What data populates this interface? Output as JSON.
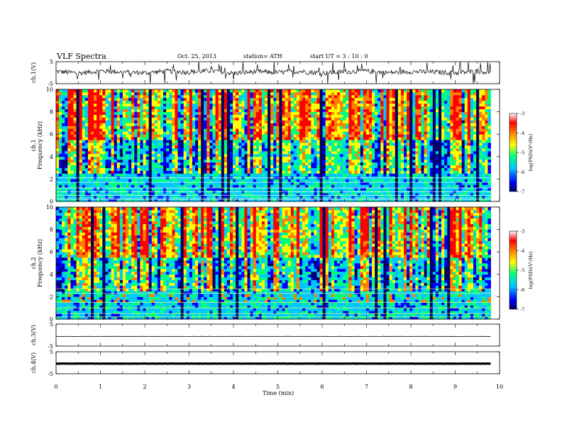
{
  "header": {
    "title": "VLF  Spectra",
    "date": "Oct. 25, 2013",
    "station": "station= ATH",
    "start_ut": "start  UT  =   3  : 10 : 0"
  },
  "chart_data": [
    {
      "type": "line",
      "panel": "ch1-waveform",
      "ylabel": "ch.1(V)",
      "ylim": [
        -5,
        5
      ],
      "yticks": [
        "5",
        "-5"
      ],
      "x": [
        0,
        0.5,
        1,
        1.5,
        2,
        2.5,
        3,
        3.5,
        4,
        4.5,
        5,
        5.5,
        6,
        6.5,
        7,
        7.5,
        8,
        8.5,
        9,
        9.5,
        9.8
      ],
      "y": [
        0.6,
        -0.2,
        0.8,
        0.3,
        -0.1,
        0.7,
        0.2,
        0.9,
        -0.3,
        0.5,
        0.1,
        0.6,
        -0.2,
        0.4,
        0.7,
        0.0,
        0.5,
        0.3,
        -0.1,
        0.6,
        0.2
      ],
      "xlim": [
        0,
        10
      ]
    },
    {
      "type": "heatmap",
      "panel": "ch1-spectrogram",
      "ylabel": "ch.1\nFrequency (kHz)",
      "ylim": [
        0,
        10
      ],
      "yticks": [
        "0",
        "2",
        "4",
        "6",
        "8",
        "10"
      ],
      "xlim": [
        0,
        10
      ],
      "data_xmax": 9.8,
      "colorbar": {
        "label": "log(PSD)(V²/Hz)",
        "range": [
          -7,
          -3
        ],
        "ticks": [
          "-3",
          "-4",
          "-5",
          "-6",
          "-7"
        ]
      }
    },
    {
      "type": "heatmap",
      "panel": "ch2-spectrogram",
      "ylabel": "ch.2\nFrequency (kHz)",
      "ylim": [
        0,
        10
      ],
      "yticks": [
        "0",
        "2",
        "4",
        "6",
        "8",
        "10"
      ],
      "xlim": [
        0,
        10
      ],
      "data_xmax": 9.8,
      "colorbar": {
        "label": "log(PSD)(V²/Hz)",
        "range": [
          -7,
          -3
        ],
        "ticks": [
          "-3",
          "-4",
          "-5",
          "-6",
          "-7"
        ]
      }
    },
    {
      "type": "line",
      "panel": "ch3-waveform",
      "ylabel": "ch.3(V)",
      "ylim": [
        -5,
        5
      ],
      "yticks": [
        "5",
        "-5"
      ],
      "x": [
        0,
        9.8
      ],
      "y": [
        -0.6,
        -0.6
      ],
      "xlim": [
        0,
        10
      ]
    },
    {
      "type": "line",
      "panel": "ch4-waveform",
      "ylabel": "ch.4(V)",
      "ylim": [
        -5,
        5
      ],
      "yticks": [
        "5",
        "-5"
      ],
      "x": [
        0,
        9.8
      ],
      "y": [
        -0.4,
        -0.4
      ],
      "xlim": [
        0,
        10
      ]
    }
  ],
  "xaxis": {
    "label": "Time  (min)",
    "ticks": [
      "0",
      "1",
      "2",
      "3",
      "4",
      "5",
      "6",
      "7",
      "8",
      "9",
      "10"
    ]
  },
  "colors": {
    "colormap": [
      "#000066",
      "#0000ff",
      "#00c8ff",
      "#00ff80",
      "#ffff00",
      "#ff8000",
      "#ff0000",
      "#ffffff"
    ]
  }
}
